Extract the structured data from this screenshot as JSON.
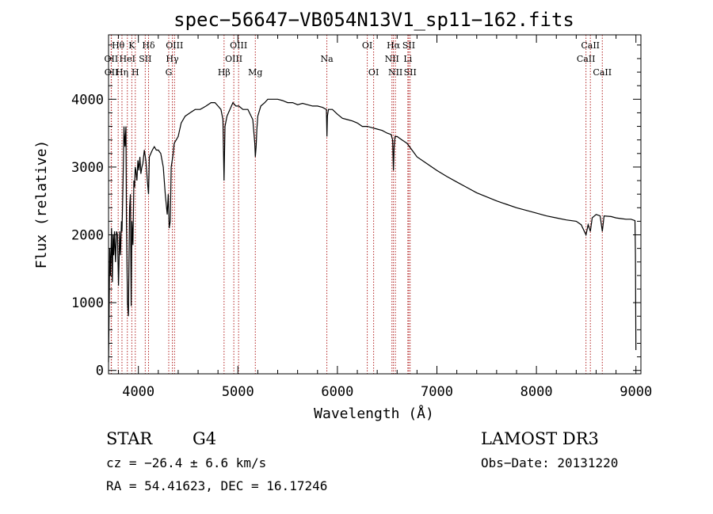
{
  "colors": {
    "background": "#ffffff",
    "foreground": "#000000",
    "line_marker": "#b22222"
  },
  "chart_data": {
    "type": "line",
    "title": "spec−56647−VB054N13V1_sp11−162.fits",
    "xlabel": "Wavelength (Å)",
    "ylabel": "Flux (relative)",
    "xlim": [
      3700,
      9050
    ],
    "ylim": [
      -50,
      4950
    ],
    "xticks": [
      4000,
      5000,
      6000,
      7000,
      8000,
      9000
    ],
    "xtick_labels": [
      "4000",
      "5000",
      "6000",
      "7000",
      "8000",
      "9000"
    ],
    "yticks": [
      0,
      1000,
      2000,
      3000,
      4000
    ],
    "ytick_labels": [
      "0",
      "1000",
      "2000",
      "3000",
      "4000"
    ],
    "legend": "none",
    "grid": false,
    "series": [
      {
        "name": "flux",
        "x": [
          3700,
          3705,
          3712,
          3720,
          3730,
          3738,
          3745,
          3752,
          3760,
          3770,
          3780,
          3790,
          3800,
          3812,
          3820,
          3830,
          3835,
          3845,
          3855,
          3865,
          3875,
          3880,
          3890,
          3900,
          3905,
          3912,
          3920,
          3928,
          3935,
          3945,
          3955,
          3962,
          3968,
          3975,
          3985,
          3995,
          4005,
          4015,
          4025,
          4035,
          4045,
          4060,
          4075,
          4090,
          4102,
          4110,
          4125,
          4140,
          4160,
          4180,
          4200,
          4225,
          4250,
          4270,
          4290,
          4300,
          4310,
          4320,
          4330,
          4340,
          4350,
          4360,
          4380,
          4400,
          4430,
          4470,
          4520,
          4570,
          4620,
          4680,
          4730,
          4770,
          4800,
          4830,
          4850,
          4861,
          4870,
          4890,
          4920,
          4950,
          4980,
          5010,
          5050,
          5100,
          5150,
          5170,
          5175,
          5183,
          5190,
          5200,
          5230,
          5270,
          5300,
          5350,
          5400,
          5450,
          5500,
          5550,
          5600,
          5650,
          5700,
          5750,
          5800,
          5850,
          5889,
          5895,
          5900,
          5910,
          5950,
          6000,
          6050,
          6100,
          6150,
          6200,
          6250,
          6300,
          6350,
          6400,
          6450,
          6500,
          6540,
          6555,
          6563,
          6570,
          6580,
          6600,
          6650,
          6700,
          6750,
          6800,
          6900,
          7000,
          7100,
          7200,
          7300,
          7400,
          7500,
          7600,
          7700,
          7800,
          7900,
          8000,
          8100,
          8200,
          8300,
          8400,
          8450,
          8498,
          8520,
          8542,
          8560,
          8600,
          8640,
          8662,
          8680,
          8750,
          8800,
          8850,
          8900,
          8950,
          8990,
          8995,
          9000
        ],
        "y": [
          120,
          750,
          1800,
          1400,
          2100,
          1300,
          2000,
          1700,
          2050,
          1600,
          2050,
          2000,
          1250,
          2050,
          1700,
          2200,
          2050,
          2700,
          3600,
          3300,
          3600,
          2200,
          1000,
          800,
          1500,
          2400,
          2600,
          950,
          2200,
          1850,
          2800,
          2700,
          3000,
          2950,
          2800,
          3100,
          2950,
          3150,
          2900,
          3000,
          3050,
          3250,
          3100,
          2800,
          2600,
          3150,
          3200,
          3250,
          3300,
          3250,
          3250,
          3200,
          3000,
          2600,
          2300,
          2600,
          2100,
          2200,
          3000,
          3100,
          3200,
          3350,
          3400,
          3450,
          3650,
          3750,
          3800,
          3850,
          3850,
          3900,
          3950,
          3950,
          3900,
          3850,
          3700,
          2800,
          3600,
          3750,
          3850,
          3950,
          3900,
          3900,
          3850,
          3850,
          3700,
          3350,
          3150,
          3300,
          3550,
          3750,
          3900,
          3950,
          4000,
          4000,
          4000,
          3980,
          3950,
          3950,
          3920,
          3940,
          3920,
          3900,
          3900,
          3880,
          3850,
          3450,
          3750,
          3850,
          3850,
          3780,
          3720,
          3700,
          3680,
          3650,
          3600,
          3600,
          3580,
          3560,
          3540,
          3500,
          3480,
          3400,
          2950,
          3300,
          3450,
          3450,
          3400,
          3350,
          3250,
          3150,
          3050,
          2950,
          2860,
          2780,
          2700,
          2620,
          2560,
          2500,
          2450,
          2400,
          2360,
          2320,
          2280,
          2250,
          2220,
          2200,
          2150,
          2000,
          2150,
          2050,
          2250,
          2300,
          2280,
          2050,
          2280,
          2270,
          2250,
          2240,
          2230,
          2230,
          2210,
          1700,
          300
        ]
      }
    ],
    "line_markers": [
      {
        "label": "Hθ",
        "x": 3797,
        "row": 1
      },
      {
        "label": "OII",
        "x": 3727,
        "row": 2
      },
      {
        "label": "OII",
        "x": 3729,
        "row": 3
      },
      {
        "label": "Hη",
        "x": 3835,
        "row": 3
      },
      {
        "label": "K",
        "x": 3934,
        "row": 1
      },
      {
        "label": "HeI",
        "x": 3889,
        "row": 2
      },
      {
        "label": "H",
        "x": 3969,
        "row": 3
      },
      {
        "label": "Hδ",
        "x": 4102,
        "row": 1
      },
      {
        "label": "SII",
        "x": 4069,
        "row": 2
      },
      {
        "label": "OIII",
        "x": 4363,
        "row": 1
      },
      {
        "label": "Hγ",
        "x": 4341,
        "row": 2
      },
      {
        "label": "G",
        "x": 4305,
        "row": 3
      },
      {
        "label": "OIII",
        "x": 5007,
        "row": 1
      },
      {
        "label": "OIII",
        "x": 4959,
        "row": 2
      },
      {
        "label": "Hβ",
        "x": 4861,
        "row": 3
      },
      {
        "label": "Mg",
        "x": 5175,
        "row": 3
      },
      {
        "label": "Na",
        "x": 5894,
        "row": 2
      },
      {
        "label": "OI",
        "x": 6300,
        "row": 1
      },
      {
        "label": "OI",
        "x": 6364,
        "row": 3
      },
      {
        "label": "Hα",
        "x": 6563,
        "row": 1
      },
      {
        "label": "NII",
        "x": 6548,
        "row": 2
      },
      {
        "label": "NII",
        "x": 6583,
        "row": 3
      },
      {
        "label": "SII",
        "x": 6717,
        "row": 1
      },
      {
        "label": "Li",
        "x": 6708,
        "row": 2
      },
      {
        "label": "SII",
        "x": 6731,
        "row": 3
      },
      {
        "label": "CaII",
        "x": 8542,
        "row": 1
      },
      {
        "label": "CaII",
        "x": 8498,
        "row": 2
      },
      {
        "label": "CaII",
        "x": 8662,
        "row": 3
      }
    ]
  },
  "info": {
    "object_class": "STAR",
    "subclass": "G4",
    "redshift": "cz = −26.4 ± 6.6 km/s",
    "coords": "RA =  54.41623, DEC =  16.17246",
    "survey": "LAMOST DR3",
    "obs_date": "Obs−Date: 20131220"
  }
}
